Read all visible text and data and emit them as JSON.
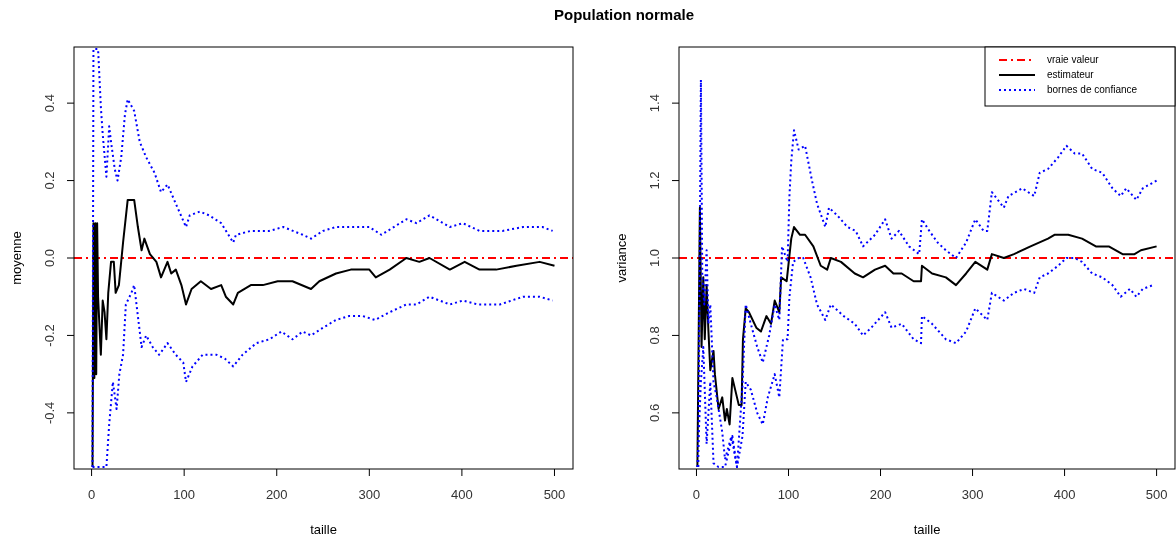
{
  "chart_data": [
    {
      "type": "line",
      "title": "Population normale",
      "xlabel": "taille",
      "ylabel": "moyenne",
      "xlim": [
        -19,
        520
      ],
      "ylim": [
        -0.545,
        0.545
      ],
      "xticks": [
        0,
        100,
        200,
        300,
        400,
        500
      ],
      "yticks": [
        -0.4,
        -0.2,
        {
          "value": 0,
          "label": "0.0"
        },
        0.2,
        0.4
      ],
      "grid": false,
      "ref_lines": [
        {
          "axis": "y",
          "value": 0,
          "color": "#ff0000",
          "line_style": "dashed"
        }
      ],
      "series": [
        {
          "color": "#000000",
          "line_style": "solid",
          "x": [
            1,
            2,
            3,
            4,
            5,
            6,
            7,
            10,
            12,
            14,
            16,
            18,
            21,
            24,
            26,
            29.5,
            34,
            39,
            46,
            50,
            54,
            57,
            63,
            70,
            75,
            82,
            86,
            91,
            97,
            102,
            108,
            118,
            129,
            140,
            145,
            153,
            158,
            172,
            185,
            201,
            217,
            237,
            246,
            264,
            280,
            300,
            307,
            322,
            340,
            354,
            365,
            387,
            403,
            419,
            437,
            459,
            484,
            500
          ],
          "values": [
            -0.54,
            0.09,
            -0.31,
            0.09,
            -0.3,
            0.09,
            -0.1,
            -0.25,
            -0.11,
            -0.14,
            -0.21,
            -0.09,
            -0.01,
            -0.01,
            -0.09,
            -0.07,
            0.04,
            0.15,
            0.15,
            0.08,
            0.02,
            0.05,
            0.01,
            -0.01,
            -0.05,
            -0.01,
            -0.04,
            -0.03,
            -0.07,
            -0.12,
            -0.08,
            -0.06,
            -0.08,
            -0.07,
            -0.1,
            -0.12,
            -0.09,
            -0.07,
            -0.07,
            -0.06,
            -0.06,
            -0.08,
            -0.06,
            -0.04,
            -0.03,
            -0.03,
            -0.05,
            -0.03,
            0.0,
            -0.01,
            0.0,
            -0.03,
            -0.01,
            -0.03,
            -0.03,
            -0.02,
            -0.01,
            -0.02
          ]
        },
        {
          "color": "#0000ff",
          "line_style": "dotted",
          "x": [
            1,
            2,
            7,
            10,
            12,
            16,
            19,
            21,
            25,
            28,
            32,
            36,
            39,
            46,
            52,
            59,
            68,
            75,
            82,
            91,
            102,
            106,
            117,
            127,
            140,
            153,
            156,
            172,
            192,
            207,
            228,
            237,
            250,
            264,
            282,
            300,
            313,
            340,
            351,
            365,
            387,
            401,
            419,
            444,
            466,
            487,
            498
          ],
          "values": [
            -0.54,
            0.54,
            0.54,
            0.39,
            0.32,
            0.21,
            0.34,
            0.3,
            0.23,
            0.2,
            0.26,
            0.37,
            0.41,
            0.38,
            0.3,
            0.26,
            0.22,
            0.17,
            0.19,
            0.14,
            0.08,
            0.11,
            0.12,
            0.11,
            0.09,
            0.04,
            0.06,
            0.07,
            0.07,
            0.08,
            0.06,
            0.05,
            0.07,
            0.08,
            0.08,
            0.08,
            0.06,
            0.1,
            0.09,
            0.11,
            0.08,
            0.09,
            0.07,
            0.07,
            0.08,
            0.08,
            0.07
          ]
        },
        {
          "color": "#0000ff",
          "line_style": "dotted",
          "x": [
            1,
            2,
            16,
            19,
            23,
            27,
            30,
            34,
            37,
            43,
            46,
            52,
            54,
            59,
            66,
            73,
            82,
            91,
            99,
            102,
            109,
            120,
            135,
            144,
            153,
            163,
            178,
            192,
            205,
            217,
            228,
            237,
            250,
            264,
            278,
            293,
            306,
            322,
            340,
            351,
            365,
            387,
            401,
            417,
            441,
            466,
            484,
            498
          ],
          "values": [
            -0.54,
            -0.54,
            -0.54,
            -0.43,
            -0.32,
            -0.39,
            -0.3,
            -0.25,
            -0.12,
            -0.09,
            -0.07,
            -0.19,
            -0.23,
            -0.2,
            -0.23,
            -0.25,
            -0.22,
            -0.25,
            -0.27,
            -0.32,
            -0.28,
            -0.25,
            -0.25,
            -0.26,
            -0.28,
            -0.25,
            -0.22,
            -0.21,
            -0.19,
            -0.21,
            -0.19,
            -0.2,
            -0.18,
            -0.16,
            -0.15,
            -0.15,
            -0.16,
            -0.14,
            -0.12,
            -0.12,
            -0.1,
            -0.12,
            -0.11,
            -0.12,
            -0.12,
            -0.1,
            -0.1,
            -0.11
          ]
        }
      ]
    },
    {
      "type": "line",
      "xlabel": "taille",
      "ylabel": "variance",
      "xlim": [
        -19,
        520
      ],
      "ylim": [
        0.455,
        1.545
      ],
      "xticks": [
        0,
        100,
        200,
        300,
        400,
        500
      ],
      "yticks": [
        0.6,
        0.8,
        {
          "value": 1,
          "label": "1.0"
        },
        1.2,
        1.4
      ],
      "grid": false,
      "legend": "top right",
      "ref_lines": [
        {
          "axis": "y",
          "value": 1,
          "label": "vraie valeur",
          "color": "#ff0000",
          "line_style": "dashed"
        }
      ],
      "series": [
        {
          "name": "estimateur",
          "color": "#000000",
          "line_style": "solid",
          "x": [
            1,
            3.7,
            5.5,
            7.4,
            9,
            11,
            13,
            15,
            18.5,
            20,
            24,
            28,
            31,
            33,
            36,
            39,
            42,
            46,
            49,
            50.5,
            53.5,
            57,
            65,
            70,
            76,
            81,
            85,
            90,
            92,
            98,
            103,
            106,
            112.5,
            118,
            127,
            135,
            142,
            146,
            157,
            172,
            181,
            194,
            205,
            214,
            223,
            236,
            244,
            245,
            256,
            271,
            282,
            293,
            303,
            316,
            321,
            334,
            345,
            363,
            382,
            389,
            404,
            419,
            434,
            448,
            463,
            476,
            483,
            500
          ],
          "values": [
            0.46,
            1.13,
            0.77,
            0.95,
            0.79,
            0.93,
            0.81,
            0.71,
            0.76,
            0.7,
            0.61,
            0.64,
            0.58,
            0.61,
            0.57,
            0.69,
            0.66,
            0.62,
            0.62,
            0.79,
            0.87,
            0.86,
            0.82,
            0.81,
            0.85,
            0.83,
            0.89,
            0.86,
            0.95,
            0.94,
            1.05,
            1.08,
            1.06,
            1.06,
            1.03,
            0.98,
            0.97,
            1.0,
            0.99,
            0.96,
            0.95,
            0.97,
            0.98,
            0.96,
            0.96,
            0.94,
            0.94,
            0.98,
            0.96,
            0.95,
            0.93,
            0.96,
            0.99,
            0.97,
            1.01,
            1.0,
            1.01,
            1.03,
            1.05,
            1.06,
            1.06,
            1.05,
            1.03,
            1.03,
            1.01,
            1.01,
            1.02,
            1.03
          ]
        },
        {
          "name": "bornes de confiance",
          "color": "#0000ff",
          "line_style": "dotted",
          "x": [
            2,
            4.8,
            6.3,
            8.5,
            11,
            13,
            15,
            18.5,
            22,
            28,
            31,
            38,
            44,
            50,
            53.5,
            59,
            66,
            72,
            79,
            85,
            90,
            93,
            99,
            101,
            103,
            106,
            111,
            118,
            125.5,
            131,
            140,
            144,
            153,
            164,
            173,
            181,
            194,
            205,
            212,
            220,
            231,
            242,
            245,
            253,
            262,
            271,
            282,
            293,
            303,
            312,
            316,
            321,
            334,
            339,
            354,
            367,
            373,
            382,
            393,
            402,
            411,
            419,
            430,
            441,
            452,
            461,
            467,
            478,
            485,
            500
          ],
          "values": [
            0.46,
            1.46,
            0.95,
            0.88,
            1.02,
            0.83,
            0.88,
            0.68,
            0.64,
            0.55,
            0.48,
            0.54,
            0.46,
            0.67,
            0.88,
            0.83,
            0.77,
            0.73,
            0.8,
            0.88,
            0.84,
            1.03,
            0.99,
            1.16,
            1.25,
            1.33,
            1.28,
            1.29,
            1.2,
            1.14,
            1.08,
            1.13,
            1.11,
            1.08,
            1.07,
            1.03,
            1.06,
            1.1,
            1.05,
            1.07,
            1.03,
            1.01,
            1.1,
            1.07,
            1.04,
            1.02,
            1.0,
            1.04,
            1.1,
            1.07,
            1.07,
            1.17,
            1.13,
            1.16,
            1.18,
            1.16,
            1.22,
            1.23,
            1.26,
            1.29,
            1.27,
            1.27,
            1.23,
            1.22,
            1.18,
            1.16,
            1.18,
            1.15,
            1.18,
            1.2
          ]
        },
        {
          "color": "#0000ff",
          "line_style": "dotted",
          "x": [
            1,
            4.8,
            7.4,
            11,
            15,
            18.5,
            24,
            31,
            39,
            44,
            50,
            53.5,
            59,
            66,
            72,
            77.5,
            85,
            90,
            94,
            99,
            101,
            105,
            111,
            116,
            124,
            131,
            140,
            146,
            160,
            172,
            181,
            190,
            205,
            212,
            223,
            236,
            244,
            245,
            256,
            271,
            282,
            293,
            303,
            316,
            321,
            334,
            345,
            356,
            367,
            373,
            382,
            393,
            402,
            411,
            419,
            430,
            441,
            452,
            461,
            471,
            478,
            485,
            496
          ],
          "values": [
            0.46,
            0.68,
            0.77,
            0.52,
            0.68,
            0.47,
            0.46,
            0.46,
            0.54,
            0.46,
            0.54,
            0.68,
            0.66,
            0.6,
            0.57,
            0.64,
            0.7,
            0.64,
            0.79,
            0.79,
            0.9,
            0.99,
            1.0,
            1.0,
            0.95,
            0.88,
            0.84,
            0.88,
            0.85,
            0.83,
            0.8,
            0.82,
            0.86,
            0.82,
            0.83,
            0.79,
            0.78,
            0.85,
            0.83,
            0.79,
            0.78,
            0.81,
            0.87,
            0.84,
            0.91,
            0.89,
            0.91,
            0.92,
            0.91,
            0.95,
            0.96,
            0.98,
            1.0,
            1.0,
            0.99,
            0.96,
            0.95,
            0.93,
            0.9,
            0.92,
            0.9,
            0.92,
            0.93
          ]
        }
      ]
    }
  ]
}
